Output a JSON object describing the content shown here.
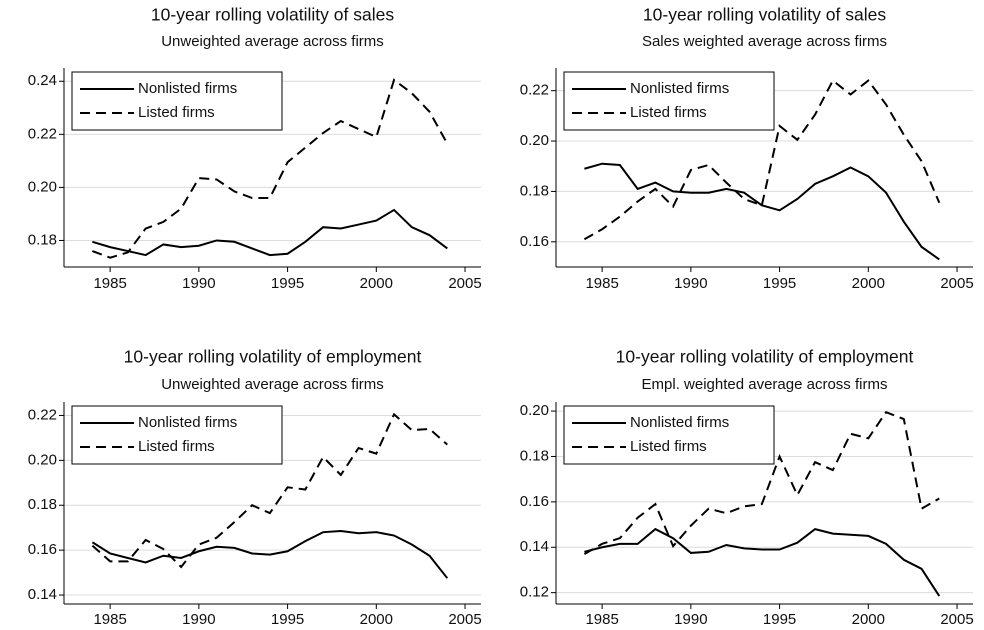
{
  "chart_data": [
    {
      "type": "line",
      "title": "10-year rolling volatility of sales",
      "subtitle": "Unweighted average across firms",
      "x": [
        1984,
        1985,
        1986,
        1987,
        1988,
        1989,
        1990,
        1991,
        1992,
        1993,
        1994,
        1995,
        1996,
        1997,
        1998,
        1999,
        2000,
        2001,
        2002,
        2003,
        2004
      ],
      "series": [
        {
          "name": "Nonlisted firms",
          "color": "#000000",
          "line_style": "solid",
          "values": [
            0.1795,
            0.1775,
            0.176,
            0.1745,
            0.1785,
            0.1775,
            0.178,
            0.18,
            0.1795,
            0.177,
            0.1745,
            0.175,
            0.1795,
            0.185,
            0.1845,
            0.186,
            0.1875,
            0.1915,
            0.185,
            0.182,
            0.177
          ]
        },
        {
          "name": "Listed firms",
          "color": "#000000",
          "line_style": "dashed",
          "values": [
            0.176,
            0.1735,
            0.1755,
            0.1845,
            0.187,
            0.192,
            0.2035,
            0.203,
            0.1985,
            0.196,
            0.196,
            0.2095,
            0.215,
            0.2205,
            0.225,
            0.222,
            0.219,
            0.2405,
            0.2355,
            0.2285,
            0.2165
          ]
        }
      ],
      "xlim": [
        1982.4,
        2005.9
      ],
      "xticks": [
        1985,
        1990,
        1995,
        2000,
        2005
      ],
      "ylim": [
        0.17,
        0.245
      ],
      "yticks": [
        0.18,
        {
          "value": 0.2,
          "label": "0.20"
        },
        0.22,
        0.24
      ],
      "grid": true,
      "legend": "top-left"
    },
    {
      "type": "line",
      "title": "10-year rolling volatility of sales",
      "subtitle": "Sales weighted average across firms",
      "x": [
        1984,
        1985,
        1986,
        1987,
        1988,
        1989,
        1990,
        1991,
        1992,
        1993,
        1994,
        1995,
        1996,
        1997,
        1998,
        1999,
        2000,
        2001,
        2002,
        2003,
        2004
      ],
      "series": [
        {
          "name": "Nonlisted firms",
          "color": "#000000",
          "line_style": "solid",
          "values": [
            0.189,
            0.191,
            0.1905,
            0.181,
            0.1835,
            0.18,
            0.1795,
            0.1795,
            0.181,
            0.1795,
            0.1745,
            0.1725,
            0.177,
            0.183,
            0.186,
            0.1895,
            0.186,
            0.1795,
            0.168,
            0.158,
            0.153
          ]
        },
        {
          "name": "Listed firms",
          "color": "#000000",
          "line_style": "dashed",
          "values": [
            0.161,
            0.165,
            0.17,
            0.176,
            0.181,
            0.174,
            0.1885,
            0.1905,
            0.1835,
            0.177,
            0.1745,
            0.206,
            0.2005,
            0.2105,
            0.224,
            0.2185,
            0.224,
            0.2145,
            0.2025,
            0.192,
            0.1755
          ]
        }
      ],
      "xlim": [
        1982.4,
        2005.9
      ],
      "xticks": [
        1985,
        1990,
        1995,
        2000,
        2005
      ],
      "ylim": [
        0.15,
        0.229
      ],
      "yticks": [
        0.16,
        0.18,
        {
          "value": 0.2,
          "label": "0.20"
        },
        0.22
      ],
      "grid": true,
      "legend": "top-left"
    },
    {
      "type": "line",
      "title": "10-year rolling volatility of employment",
      "subtitle": "Unweighted average across firms",
      "x": [
        1984,
        1985,
        1986,
        1987,
        1988,
        1989,
        1990,
        1991,
        1992,
        1993,
        1994,
        1995,
        1996,
        1997,
        1998,
        1999,
        2000,
        2001,
        2002,
        2003,
        2004
      ],
      "series": [
        {
          "name": "Nonlisted firms",
          "color": "#000000",
          "line_style": "solid",
          "values": [
            0.1635,
            0.1585,
            0.1565,
            0.1545,
            0.1575,
            0.1565,
            0.1595,
            0.1615,
            0.161,
            0.1585,
            0.158,
            0.1595,
            0.164,
            0.168,
            0.1685,
            0.1675,
            0.168,
            0.1665,
            0.1625,
            0.1575,
            0.1475
          ]
        },
        {
          "name": "Listed firms",
          "color": "#000000",
          "line_style": "dashed",
          "values": [
            0.162,
            0.155,
            0.155,
            0.1645,
            0.1605,
            0.1525,
            0.1625,
            0.1655,
            0.1725,
            0.18,
            0.1765,
            0.188,
            0.187,
            0.2015,
            0.1935,
            0.2055,
            0.203,
            0.2205,
            0.2135,
            0.214,
            0.207
          ]
        }
      ],
      "xlim": [
        1982.4,
        2005.9
      ],
      "xticks": [
        1985,
        1990,
        1995,
        2000,
        2005
      ],
      "ylim": [
        0.136,
        0.226
      ],
      "yticks": [
        0.14,
        0.16,
        0.18,
        {
          "value": 0.2,
          "label": "0.20"
        },
        0.22
      ],
      "grid": true,
      "legend": "top-left"
    },
    {
      "type": "line",
      "title": "10-year rolling volatility of employment",
      "subtitle": "Empl. weighted average across firms",
      "x": [
        1984,
        1985,
        1986,
        1987,
        1988,
        1989,
        1990,
        1991,
        1992,
        1993,
        1994,
        1995,
        1996,
        1997,
        1998,
        1999,
        2000,
        2001,
        2002,
        2003,
        2004
      ],
      "series": [
        {
          "name": "Nonlisted firms",
          "color": "#000000",
          "line_style": "solid",
          "values": [
            0.138,
            0.14,
            0.1415,
            0.1415,
            0.148,
            0.144,
            0.1375,
            0.138,
            0.141,
            0.1395,
            0.139,
            0.139,
            0.142,
            0.148,
            0.146,
            0.1455,
            0.145,
            0.1415,
            0.1345,
            0.1305,
            0.1185
          ]
        },
        {
          "name": "Listed firms",
          "color": "#000000",
          "line_style": "dashed",
          "values": [
            0.137,
            0.1415,
            0.144,
            0.153,
            0.159,
            0.1405,
            0.1495,
            0.157,
            0.155,
            0.158,
            0.159,
            0.18,
            0.163,
            0.1775,
            0.174,
            0.19,
            0.188,
            0.1995,
            0.1965,
            0.157,
            0.1615
          ]
        }
      ],
      "xlim": [
        1982.4,
        2005.9
      ],
      "xticks": [
        1985,
        1990,
        1995,
        2000,
        2005
      ],
      "ylim": [
        0.115,
        0.204
      ],
      "yticks": [
        0.12,
        0.14,
        0.16,
        0.18,
        {
          "value": 0.2,
          "label": "0.20"
        }
      ],
      "grid": true,
      "legend": "top-left"
    }
  ]
}
